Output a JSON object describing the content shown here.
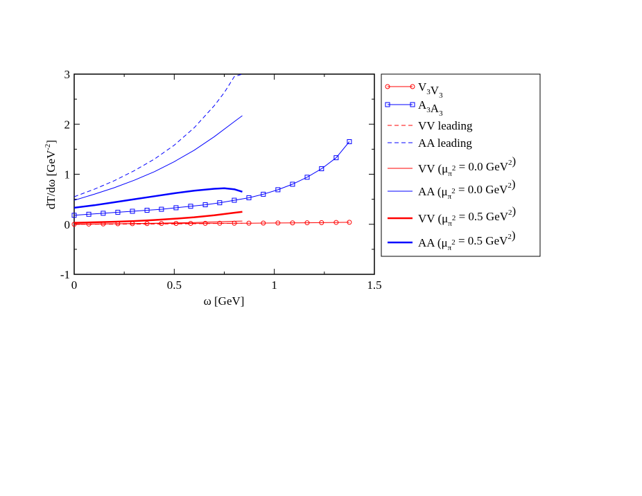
{
  "chart_data": {
    "type": "line",
    "xlabel": "ω [GeV]",
    "ylabel": {
      "main": "dT/dω [GeV",
      "sup": "-2",
      "close": "]"
    },
    "xlim": [
      0,
      1.5
    ],
    "ylim": [
      -1,
      3
    ],
    "xticks": [
      0,
      0.5,
      1,
      1.5
    ],
    "xtick_labels": [
      "0",
      "0.5",
      "1",
      "1.5"
    ],
    "yticks": [
      -1,
      0,
      1,
      2,
      3
    ],
    "ytick_labels": [
      "-1",
      "0",
      "1",
      "2",
      "3"
    ],
    "grid": false,
    "legend_position": "right, outside plot",
    "series": [
      {
        "key": "v3v3",
        "legend": {
          "parts": [
            [
              "V",
              ""
            ],
            [
              "3",
              "sub"
            ],
            [
              "V",
              ""
            ],
            [
              "3",
              "sub"
            ]
          ]
        },
        "color": "#ff0000",
        "line": "solid",
        "width": 1,
        "marker": "circle",
        "x": [
          0,
          0.073,
          0.145,
          0.218,
          0.291,
          0.364,
          0.436,
          0.509,
          0.582,
          0.655,
          0.727,
          0.8,
          0.873,
          0.945,
          1.018,
          1.091,
          1.164,
          1.236,
          1.309,
          1.375
        ],
        "y": [
          0.0,
          0.004,
          0.007,
          0.01,
          0.012,
          0.014,
          0.016,
          0.017,
          0.018,
          0.019,
          0.02,
          0.021,
          0.022,
          0.024,
          0.026,
          0.028,
          0.03,
          0.033,
          0.037,
          0.04
        ]
      },
      {
        "key": "a3a3",
        "legend": {
          "parts": [
            [
              "A",
              ""
            ],
            [
              "3",
              "sub"
            ],
            [
              "A",
              ""
            ],
            [
              "3",
              "sub"
            ]
          ]
        },
        "color": "#0000ff",
        "line": "solid",
        "width": 1,
        "marker": "square",
        "x": [
          0,
          0.073,
          0.145,
          0.218,
          0.291,
          0.364,
          0.436,
          0.509,
          0.582,
          0.655,
          0.727,
          0.8,
          0.873,
          0.945,
          1.018,
          1.091,
          1.164,
          1.236,
          1.309,
          1.375
        ],
        "y": [
          0.18,
          0.2,
          0.22,
          0.24,
          0.26,
          0.28,
          0.3,
          0.33,
          0.36,
          0.39,
          0.43,
          0.48,
          0.53,
          0.6,
          0.69,
          0.8,
          0.94,
          1.11,
          1.33,
          1.65
        ]
      },
      {
        "key": "vv-leading",
        "legend": {
          "parts": [
            [
              "VV leading",
              ""
            ]
          ]
        },
        "color": "#ff0000",
        "line": "dashed",
        "width": 1,
        "marker": "none",
        "x": [
          0,
          0.2,
          0.4,
          0.6,
          0.8,
          0.84
        ],
        "y": [
          0.0,
          0.002,
          0.005,
          0.01,
          0.02,
          0.022
        ]
      },
      {
        "key": "aa-leading",
        "legend": {
          "parts": [
            [
              "AA leading",
              ""
            ]
          ]
        },
        "color": "#0000ff",
        "line": "dashed",
        "width": 1,
        "marker": "none",
        "x": [
          0,
          0.1,
          0.2,
          0.3,
          0.4,
          0.5,
          0.6,
          0.7,
          0.75,
          0.8,
          0.84
        ],
        "y": [
          0.55,
          0.7,
          0.87,
          1.07,
          1.3,
          1.58,
          1.93,
          2.37,
          2.63,
          2.95,
          3.0
        ]
      },
      {
        "key": "vv-00",
        "legend": {
          "parts": [
            [
              "VV (μ",
              ""
            ],
            [
              "π",
              "sub"
            ],
            [
              "2",
              "sup"
            ],
            [
              " = 0.0 GeV",
              ""
            ],
            [
              "2",
              "sup"
            ],
            [
              ")",
              ""
            ]
          ]
        },
        "color": "#ff0000",
        "line": "solid",
        "width": 1,
        "marker": "none",
        "x": [
          0,
          0.2,
          0.4,
          0.6,
          0.8,
          0.84
        ],
        "y": [
          0.0,
          0.01,
          0.02,
          0.035,
          0.06,
          0.065
        ]
      },
      {
        "key": "aa-00",
        "legend": {
          "parts": [
            [
              "AA (μ",
              ""
            ],
            [
              "π",
              "sub"
            ],
            [
              "2",
              "sup"
            ],
            [
              " = 0.0 GeV",
              ""
            ],
            [
              "2",
              "sup"
            ],
            [
              ")",
              ""
            ]
          ]
        },
        "color": "#0000ff",
        "line": "solid",
        "width": 1,
        "marker": "none",
        "x": [
          0,
          0.1,
          0.2,
          0.3,
          0.4,
          0.5,
          0.6,
          0.7,
          0.8,
          0.84
        ],
        "y": [
          0.48,
          0.6,
          0.73,
          0.88,
          1.05,
          1.25,
          1.48,
          1.75,
          2.05,
          2.17
        ]
      },
      {
        "key": "vv-05",
        "legend": {
          "parts": [
            [
              "VV (μ",
              ""
            ],
            [
              "π",
              "sub"
            ],
            [
              "2",
              "sup"
            ],
            [
              " = 0.5 GeV",
              ""
            ],
            [
              "2",
              "sup"
            ],
            [
              ")",
              ""
            ]
          ]
        },
        "color": "#ff0000",
        "line": "solid",
        "width": 2.5,
        "marker": "none",
        "x": [
          0,
          0.1,
          0.2,
          0.3,
          0.4,
          0.5,
          0.6,
          0.7,
          0.8,
          0.84
        ],
        "y": [
          0.03,
          0.04,
          0.05,
          0.065,
          0.085,
          0.11,
          0.14,
          0.18,
          0.23,
          0.25
        ]
      },
      {
        "key": "aa-05",
        "legend": {
          "parts": [
            [
              "AA (μ",
              ""
            ],
            [
              "π",
              "sub"
            ],
            [
              "2",
              "sup"
            ],
            [
              " = 0.5 GeV",
              ""
            ],
            [
              "2",
              "sup"
            ],
            [
              ")",
              ""
            ]
          ]
        },
        "color": "#0000ff",
        "line": "solid",
        "width": 2.5,
        "marker": "none",
        "x": [
          0,
          0.1,
          0.2,
          0.3,
          0.4,
          0.5,
          0.6,
          0.7,
          0.75,
          0.8,
          0.84
        ],
        "y": [
          0.33,
          0.38,
          0.44,
          0.5,
          0.56,
          0.62,
          0.67,
          0.71,
          0.72,
          0.7,
          0.65
        ]
      }
    ]
  }
}
